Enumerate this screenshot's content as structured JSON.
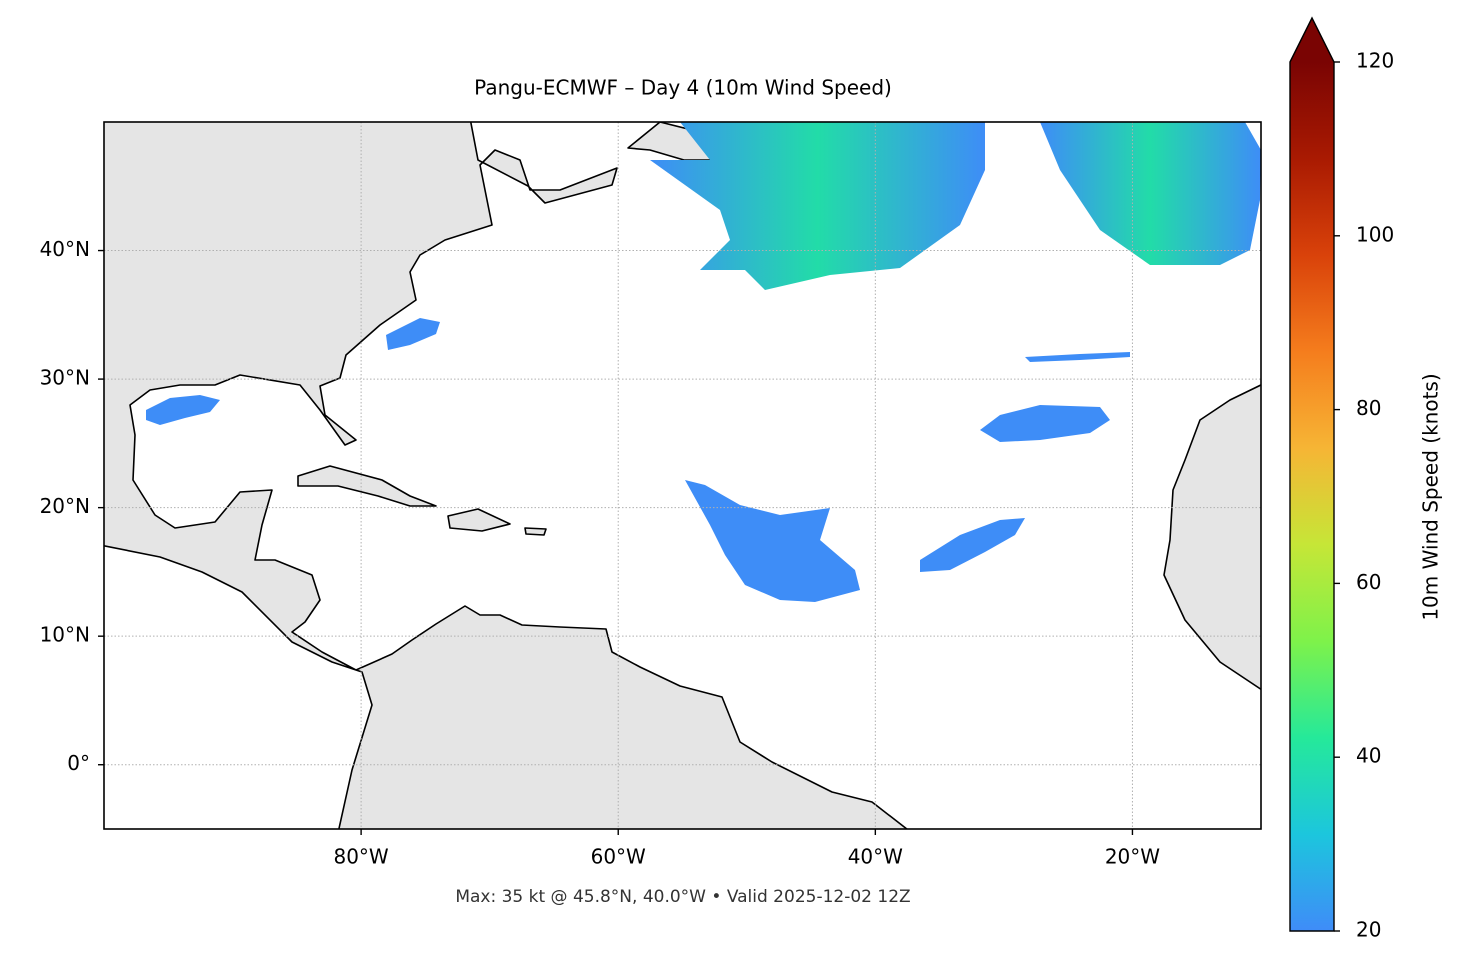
{
  "chart_data": {
    "type": "map",
    "title": "Pangu-ECMWF – Day 4 (10m Wind Speed)",
    "footer": "Max: 35 kt @ 45.8°N, 40.0°W • Valid 2025-12-02 12Z",
    "xlim": [
      -100,
      -10
    ],
    "ylim": [
      -5,
      50
    ],
    "xticks": [
      {
        "value": -80,
        "label": "80°W"
      },
      {
        "value": -60,
        "label": "60°W"
      },
      {
        "value": -40,
        "label": "40°W"
      },
      {
        "value": -20,
        "label": "20°W"
      }
    ],
    "yticks": [
      {
        "value": 0,
        "label": "0°"
      },
      {
        "value": 10,
        "label": "10°N"
      },
      {
        "value": 20,
        "label": "20°N"
      },
      {
        "value": 30,
        "label": "30°N"
      },
      {
        "value": 40,
        "label": "40°N"
      }
    ],
    "grid": true,
    "colorbar": {
      "label": "10m Wind Speed (knots)",
      "lim": [
        20,
        120
      ],
      "ticks": [
        20,
        40,
        60,
        80,
        100,
        120
      ],
      "extend": "max",
      "colors": [
        "#3f8cf8",
        "#1cc6dd",
        "#25e99a",
        "#7ef24a",
        "#c6e637",
        "#f6b535",
        "#f57d1d",
        "#d9420a",
        "#a91a02",
        "#7a0403"
      ]
    }
  }
}
